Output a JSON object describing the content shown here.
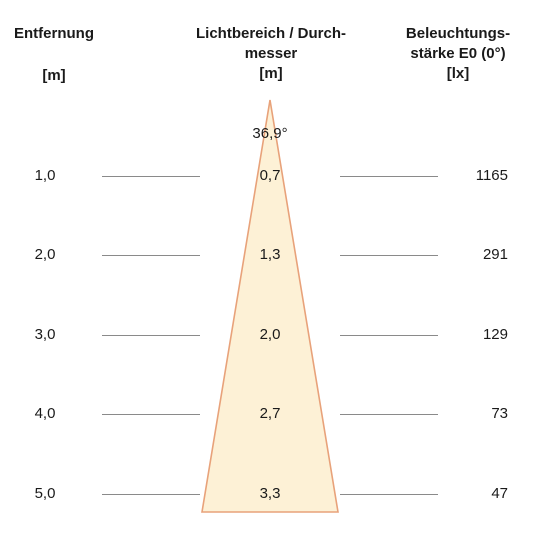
{
  "headers": {
    "distance": {
      "line1": "Entfernung",
      "unit": "[m]"
    },
    "beam": {
      "line1": "Lichtbereich / Durch-",
      "line2": "messer",
      "unit": "[m]"
    },
    "illuminance": {
      "line1": "Beleuchtungs-",
      "line2": "stärke E0 (0°)",
      "unit": "[lx]"
    }
  },
  "beam_angle": "36,9°",
  "rows": [
    {
      "distance": "1,0",
      "diameter": "0,7",
      "lux": "1165"
    },
    {
      "distance": "2,0",
      "diameter": "1,3",
      "lux": "291"
    },
    {
      "distance": "3,0",
      "diameter": "2,0",
      "lux": "129"
    },
    {
      "distance": "4,0",
      "diameter": "2,7",
      "lux": "73"
    },
    {
      "distance": "5,0",
      "diameter": "3,3",
      "lux": "47"
    }
  ],
  "colors": {
    "cone_fill": "#fdf1d6",
    "cone_stroke": "#e8a27a",
    "guide_line": "#8a8a8a",
    "text": "#1a1a1a"
  }
}
